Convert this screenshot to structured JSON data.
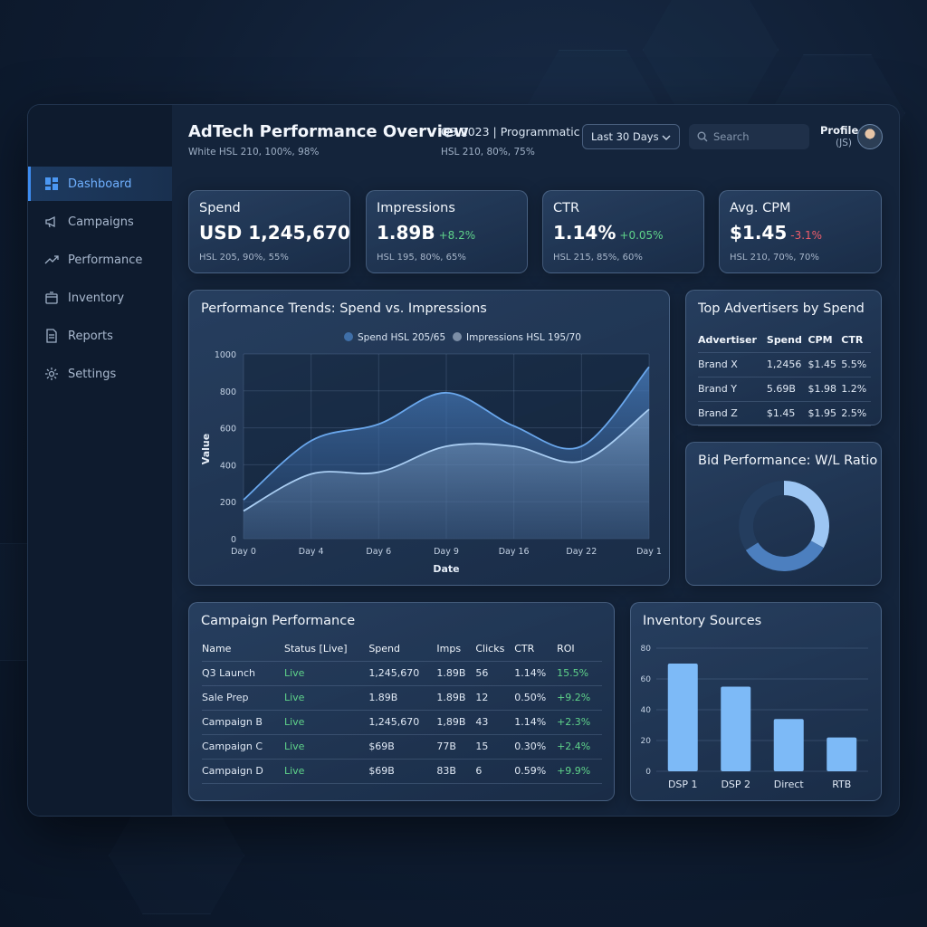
{
  "sidebar": {
    "items": [
      {
        "label": "Dashboard",
        "icon": "grid-icon",
        "active": true
      },
      {
        "label": "Campaigns",
        "icon": "megaphone-icon"
      },
      {
        "label": "Performance",
        "icon": "trend-icon"
      },
      {
        "label": "Inventory",
        "icon": "box-icon"
      },
      {
        "label": "Reports",
        "icon": "document-icon"
      },
      {
        "label": "Settings",
        "icon": "gear-icon"
      }
    ]
  },
  "header": {
    "title": "AdTech Performance Overview",
    "title_note": "White HSL 210, 100%, 98%",
    "period": "Q3 2023 | Programmatic",
    "period_note": "HSL 210, 80%, 75%",
    "range_select": "Last 30 Days",
    "search_placeholder": "Search",
    "profile_label": "Profile",
    "profile_initials": "(JS)"
  },
  "kpis": [
    {
      "label": "Spend",
      "value": "USD 1,245,670",
      "delta": "",
      "note": "HSL 205, 90%, 55%"
    },
    {
      "label": "Impressions",
      "value": "1.89B",
      "delta": "+8.2%",
      "delta_dir": "pos",
      "note": "HSL 195, 80%, 65%"
    },
    {
      "label": "CTR",
      "value": "1.14%",
      "delta": "+0.05%",
      "delta_dir": "pos",
      "note": "HSL 215, 85%, 60%"
    },
    {
      "label": "Avg. CPM",
      "value": "$1.45",
      "delta": "-3.1%",
      "delta_dir": "neg",
      "note": "HSL 210, 70%, 70%"
    }
  ],
  "trend": {
    "title": "Performance Trends: Spend vs. Impressions",
    "legend_spend": "Spend HSL 205/65",
    "legend_impressions": "Impressions HSL 195/70"
  },
  "chart_data": [
    {
      "type": "area",
      "title": "Performance Trends: Spend vs. Impressions",
      "xlabel": "Date",
      "ylabel": "Value",
      "x": [
        "Day 0",
        "Day 4",
        "Day 6",
        "Day 9",
        "Day 16",
        "Day 22",
        "Day 1"
      ],
      "ylim": [
        0,
        1000
      ],
      "yticks": [
        0,
        200,
        400,
        600,
        800,
        1000
      ],
      "grid": true,
      "legend": "top-center",
      "series": [
        {
          "name": "Spend HSL 205/65",
          "values": [
            210,
            530,
            620,
            790,
            610,
            500,
            930
          ]
        },
        {
          "name": "Impressions HSL 195/70",
          "values": [
            150,
            350,
            360,
            500,
            500,
            420,
            700
          ]
        }
      ]
    },
    {
      "type": "pie",
      "title": "Bid Performance: W/L Ratio",
      "donut": true,
      "values": [
        33,
        33,
        34
      ]
    },
    {
      "type": "bar",
      "title": "Inventory Sources",
      "categories": [
        "DSP 1",
        "DSP 2",
        "Direct",
        "RTB"
      ],
      "values": [
        70,
        55,
        34,
        22
      ],
      "ylim": [
        0,
        80
      ],
      "yticks": [
        0,
        20,
        40,
        60,
        80
      ],
      "grid": true
    }
  ],
  "advertisers": {
    "title": "Top Advertisers by Spend",
    "columns": [
      "Advertiser",
      "Spend",
      "CPM",
      "CTR"
    ],
    "rows": [
      [
        "Brand X",
        "1,2456",
        "$1.45",
        "5.5%"
      ],
      [
        "Brand Y",
        "5.69B",
        "$1.98",
        "1.2%"
      ],
      [
        "Brand Z",
        "$1.45",
        "$1.95",
        "2.5%"
      ]
    ]
  },
  "bid": {
    "title": "Bid Performance: W/L Ratio"
  },
  "campaigns": {
    "title": "Campaign Performance",
    "columns": [
      "Name",
      "Status [Live]",
      "Spend",
      "Imps",
      "Clicks",
      "CTR",
      "ROI"
    ],
    "rows": [
      [
        "Q3 Launch",
        "Live",
        "1,245,670",
        "1.89B",
        "56",
        "1.14%",
        "15.5%"
      ],
      [
        "Sale Prep",
        "Live",
        "1.89B",
        "1.89B",
        "12",
        "0.50%",
        "+9.2%"
      ],
      [
        "Campaign B",
        "Live",
        "1,245,670",
        "1,89B",
        "43",
        "1.14%",
        "+2.3%"
      ],
      [
        "Campaign C",
        "Live",
        "$69B",
        "77B",
        "15",
        "0.30%",
        "+2.4%"
      ],
      [
        "Campaign D",
        "Live",
        "$69B",
        "83B",
        "6",
        "0.59%",
        "+9.9%"
      ]
    ]
  },
  "inventory": {
    "title": "Inventory Sources"
  },
  "colors": {
    "accent": "#3d8cf0",
    "spend_line": "#6aa7ec",
    "impressions_line": "#a9cdf2",
    "bar": "#7dbaf7",
    "positive": "#5fd38a",
    "negative": "#ef5d6b"
  }
}
